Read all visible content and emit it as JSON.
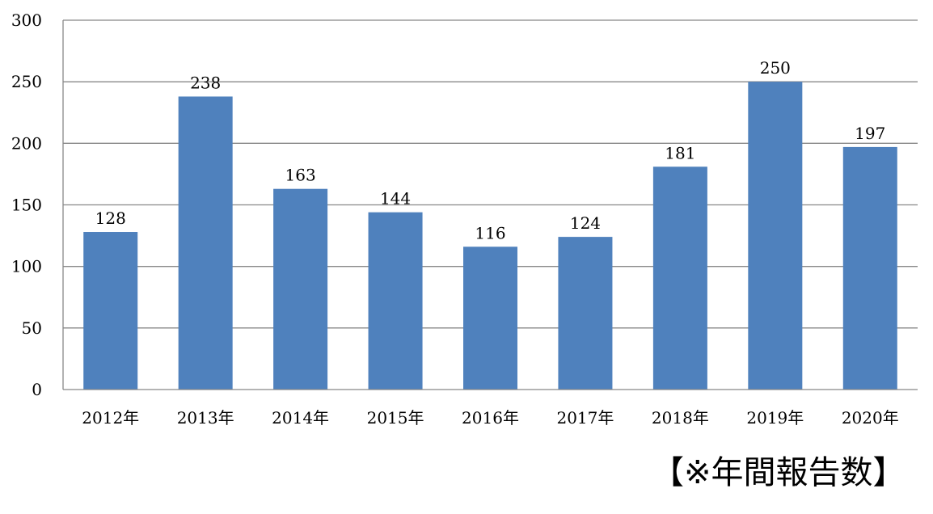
{
  "chart_data": {
    "type": "bar",
    "categories": [
      "2012年",
      "2013年",
      "2014年",
      "2015年",
      "2016年",
      "2017年",
      "2018年",
      "2019年",
      "2020年"
    ],
    "values": [
      128,
      238,
      163,
      144,
      116,
      124,
      181,
      250,
      197
    ],
    "title": "",
    "xlabel": "",
    "ylabel": "",
    "ylim": [
      0,
      300
    ],
    "yticks": [
      0,
      50,
      100,
      150,
      200,
      250,
      300
    ],
    "grid": true,
    "bar_color": "#4f81bd"
  },
  "caption": "【※年間報告数】"
}
